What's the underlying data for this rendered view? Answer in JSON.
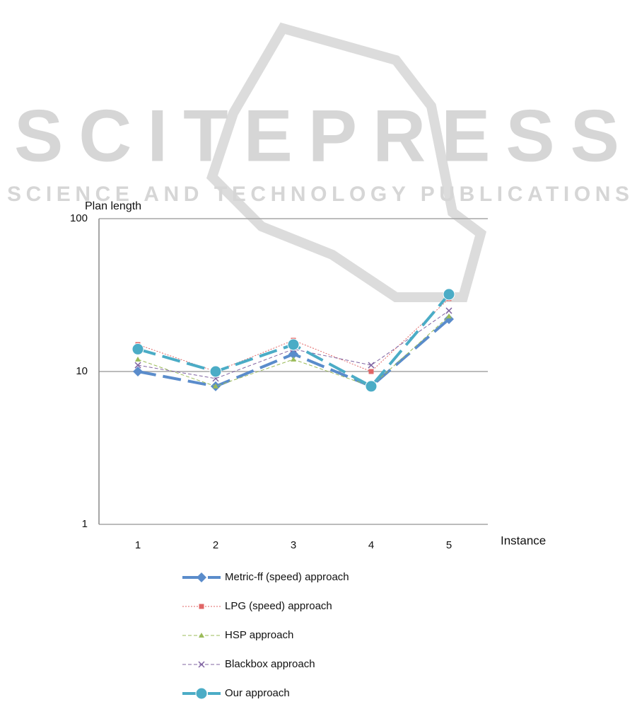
{
  "watermark": {
    "title": "SCITEPRESS",
    "subtitle": "SCIENCE AND TECHNOLOGY PUBLICATIONS"
  },
  "chart_data": {
    "type": "line",
    "y_label": "Plan length",
    "x_label": "Instance",
    "categories": [
      "1",
      "2",
      "3",
      "4",
      "5"
    ],
    "log_y": true,
    "ylim": [
      1,
      100
    ],
    "yticks": [
      1,
      10,
      100
    ],
    "grid": true,
    "legend": "bottom",
    "series": [
      {
        "name": "Metric-ff (speed) approach",
        "color": "#5a8ccb",
        "marker": "diamond",
        "line_style": "long-dash",
        "values": [
          10,
          8,
          13,
          8,
          22
        ]
      },
      {
        "name": "LPG (speed) approach",
        "color": "#e06666",
        "marker": "square",
        "line_style": "dotted",
        "values": [
          15,
          10,
          16,
          10,
          30
        ]
      },
      {
        "name": "HSP approach",
        "color": "#9bbb59",
        "marker": "triangle",
        "line_style": "dashed",
        "values": [
          12,
          8,
          12,
          8,
          23
        ]
      },
      {
        "name": "Blackbox approach",
        "color": "#8064a2",
        "marker": "x",
        "line_style": "dashed",
        "values": [
          11,
          9,
          14,
          11,
          25
        ]
      },
      {
        "name": "Our approach",
        "color": "#4bacc6",
        "marker": "circle",
        "line_style": "long-dash",
        "values": [
          14,
          10,
          15,
          8,
          32
        ]
      }
    ]
  }
}
